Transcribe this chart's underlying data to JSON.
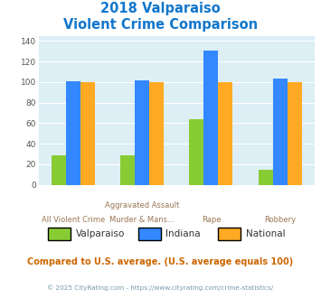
{
  "title_line1": "2018 Valparaiso",
  "title_line2": "Violent Crime Comparison",
  "cat_labels_top": [
    "",
    "Aggravated Assault",
    "",
    ""
  ],
  "cat_labels_bot": [
    "All Violent Crime",
    "Murder & Mans...",
    "Rape",
    "Robbery"
  ],
  "series": {
    "Valparaiso": [
      29,
      29,
      64,
      15
    ],
    "Indiana": [
      101,
      102,
      131,
      103
    ],
    "National": [
      100,
      100,
      100,
      100
    ]
  },
  "colors": {
    "Valparaiso": "#88cc33",
    "Indiana": "#3388ff",
    "National": "#ffaa22"
  },
  "ylim": [
    0,
    145
  ],
  "yticks": [
    0,
    20,
    40,
    60,
    80,
    100,
    120,
    140
  ],
  "plot_bg": "#ddeef5",
  "title_color": "#1177cc",
  "xlabel_color_top": "#997755",
  "xlabel_color_bot": "#997755",
  "footer_text": "Compared to U.S. average. (U.S. average equals 100)",
  "copyright_text": "© 2025 CityRating.com - https://www.cityrating.com/crime-statistics/",
  "footer_color": "#cc6600",
  "copyright_color": "#7799aa"
}
